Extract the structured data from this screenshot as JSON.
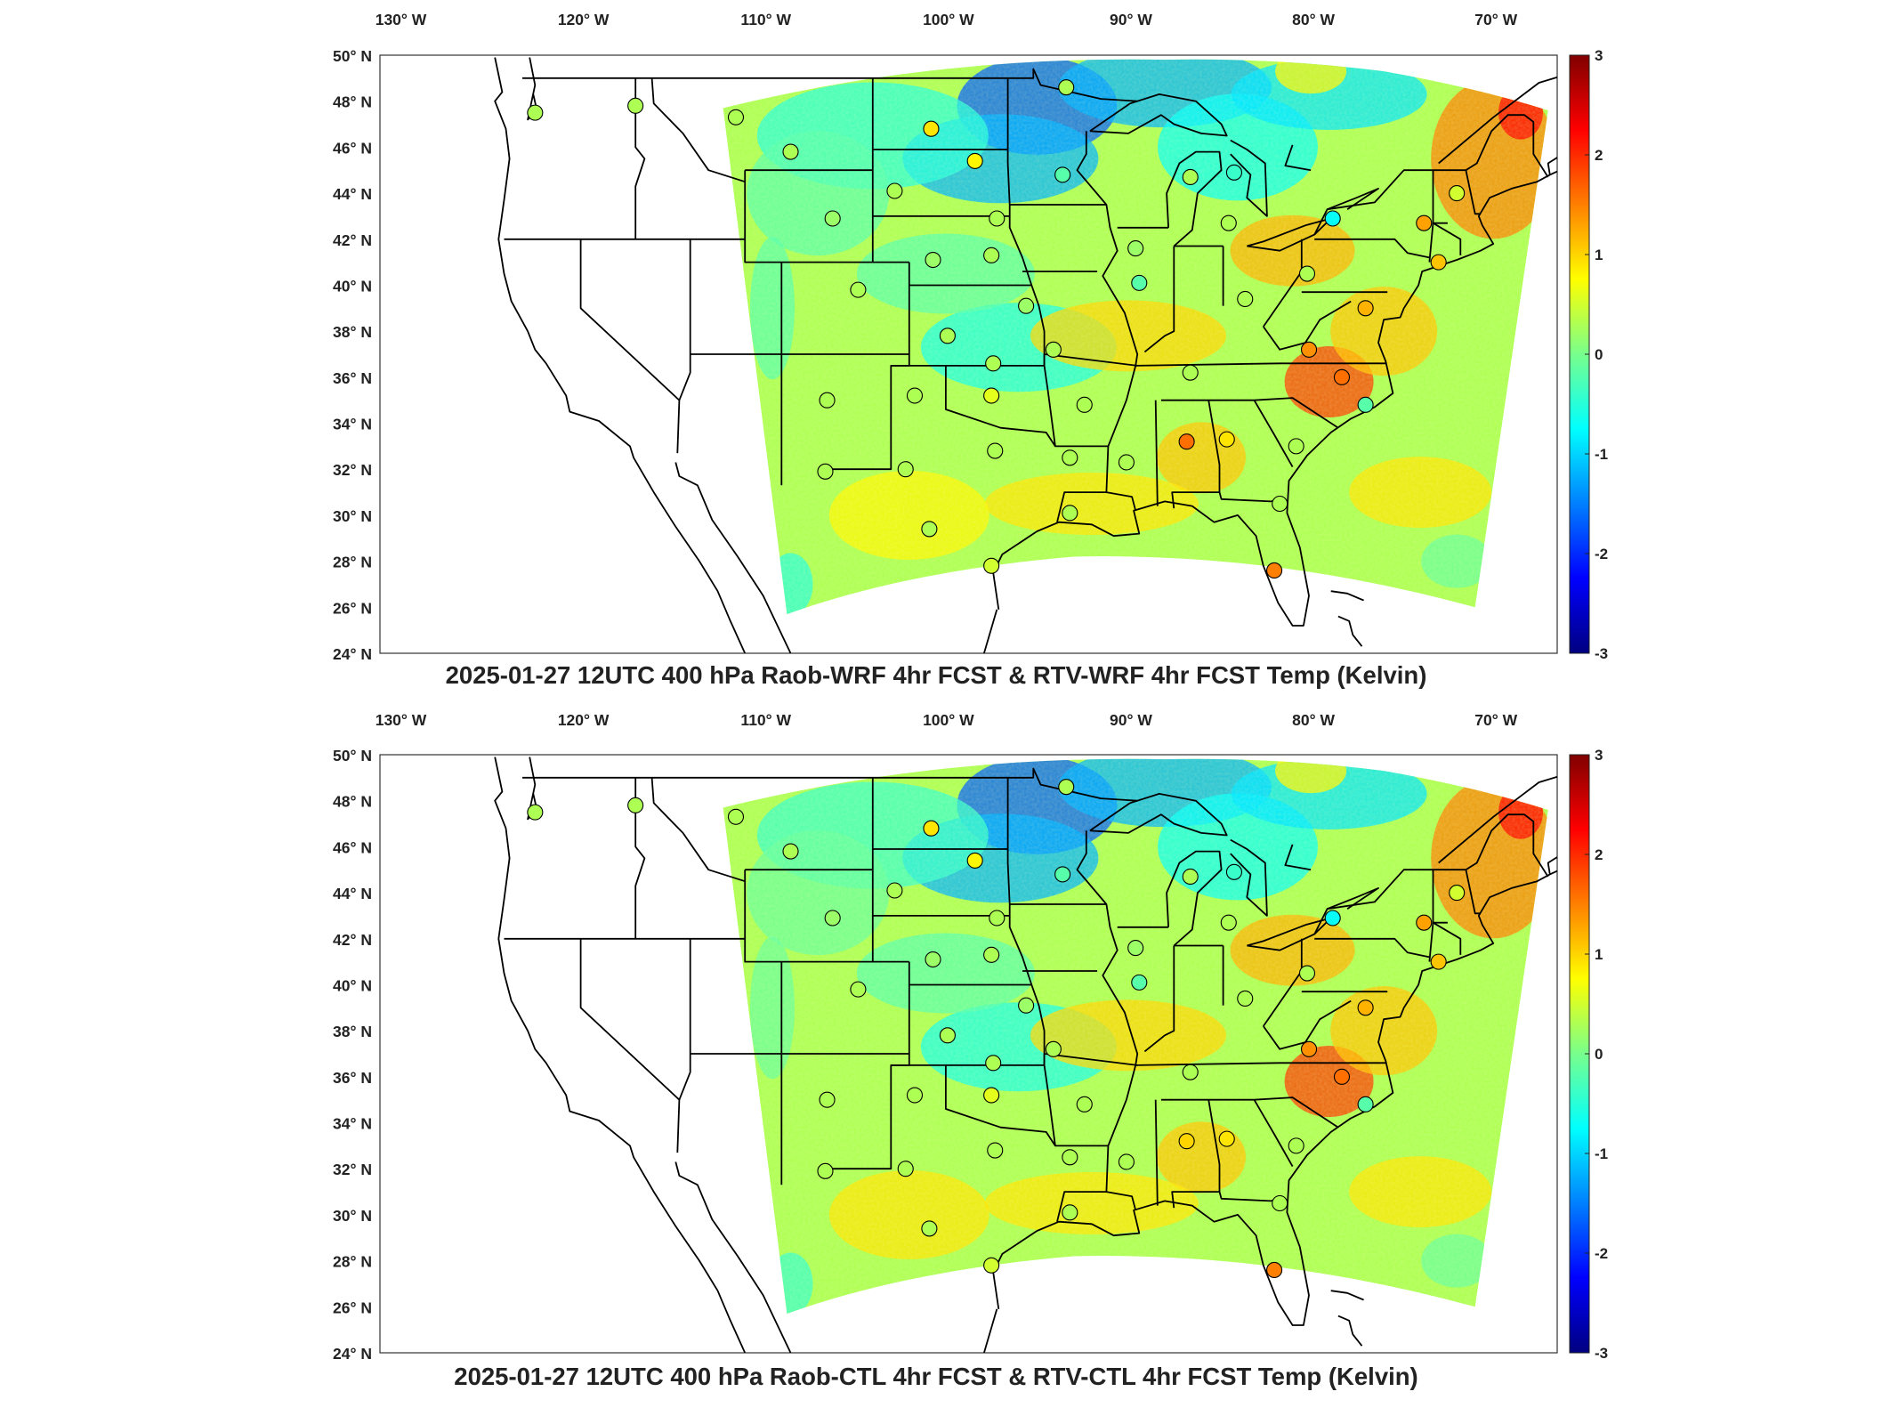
{
  "panels": [
    {
      "id": "top",
      "title": "2025-01-27 12UTC 400 hPa Raob-WRF 4hr FCST & RTV-WRF 4hr FCST Temp (Kelvin)",
      "variant": 0
    },
    {
      "id": "bottom",
      "title": "2025-01-27 12UTC 400 hPa Raob-CTL 4hr FCST & RTV-CTL 4hr FCST Temp (Kelvin)",
      "variant": 1
    }
  ],
  "lon_ticks": [
    {
      "value": -130,
      "label": "130° W"
    },
    {
      "value": -120,
      "label": "120° W"
    },
    {
      "value": -110,
      "label": "110° W"
    },
    {
      "value": -100,
      "label": "100° W"
    },
    {
      "value": -90,
      "label": "90° W"
    },
    {
      "value": -80,
      "label": "80° W"
    },
    {
      "value": -70,
      "label": "70° W"
    }
  ],
  "lat_ticks": [
    {
      "value": 50,
      "label": "50° N"
    },
    {
      "value": 48,
      "label": "48° N"
    },
    {
      "value": 46,
      "label": "46° N"
    },
    {
      "value": 44,
      "label": "44° N"
    },
    {
      "value": 42,
      "label": "42° N"
    },
    {
      "value": 40,
      "label": "40° N"
    },
    {
      "value": 38,
      "label": "38° N"
    },
    {
      "value": 36,
      "label": "36° N"
    },
    {
      "value": 34,
      "label": "34° N"
    },
    {
      "value": 32,
      "label": "32° N"
    },
    {
      "value": 30,
      "label": "30° N"
    },
    {
      "value": 28,
      "label": "28° N"
    },
    {
      "value": 26,
      "label": "26° N"
    },
    {
      "value": 24,
      "label": "24° N"
    }
  ],
  "colorbar": {
    "min": -3,
    "max": 3,
    "ticks": [
      "3",
      "2",
      "1",
      "0",
      "-1",
      "-2",
      "-3"
    ],
    "colors": [
      "#800000",
      "#ff0000",
      "#ffff00",
      "#80ff80",
      "#00ffff",
      "#0000ff",
      "#000080"
    ]
  },
  "map_extent": {
    "lon_min": -131,
    "lon_max": -66.5,
    "lat_min": 24,
    "lat_max": 50
  },
  "raob_stations": [
    {
      "lon": -122.5,
      "lat": 47.5,
      "v": 0.3
    },
    {
      "lon": -117.0,
      "lat": 47.8,
      "v": 0.3
    },
    {
      "lon": -111.5,
      "lat": 47.3,
      "v": 0.3
    },
    {
      "lon": -108.5,
      "lat": 45.8,
      "v": 0.3
    },
    {
      "lon": -106.2,
      "lat": 42.9,
      "v": 0.2
    },
    {
      "lon": -100.8,
      "lat": 46.8,
      "v": 0.9
    },
    {
      "lon": -98.4,
      "lat": 45.4,
      "v": 0.8
    },
    {
      "lon": -93.4,
      "lat": 48.6,
      "v": 0.3
    },
    {
      "lon": -93.6,
      "lat": 44.8,
      "v": -0.2
    },
    {
      "lon": -97.2,
      "lat": 42.9,
      "v": 0.3
    },
    {
      "lon": -100.7,
      "lat": 41.1,
      "v": 0.2
    },
    {
      "lon": -97.5,
      "lat": 41.3,
      "v": 0.3
    },
    {
      "lon": -104.8,
      "lat": 39.8,
      "v": 0.3
    },
    {
      "lon": -102.8,
      "lat": 44.1,
      "v": 0.3
    },
    {
      "lon": -95.6,
      "lat": 39.1,
      "v": 0.2
    },
    {
      "lon": -99.9,
      "lat": 37.8,
      "v": 0.3
    },
    {
      "lon": -97.4,
      "lat": 36.6,
      "v": 0.3
    },
    {
      "lon": -106.5,
      "lat": 35.0,
      "v": 0.3
    },
    {
      "lon": -101.7,
      "lat": 35.2,
      "v": 0.3
    },
    {
      "lon": -97.5,
      "lat": 35.2,
      "v": 0.6
    },
    {
      "lon": -94.1,
      "lat": 37.2,
      "v": 0.3
    },
    {
      "lon": -92.4,
      "lat": 34.8,
      "v": 0.3
    },
    {
      "lon": -106.6,
      "lat": 31.9,
      "v": 0.3
    },
    {
      "lon": -102.2,
      "lat": 32.0,
      "v": 0.3
    },
    {
      "lon": -97.3,
      "lat": 32.8,
      "v": 0.3
    },
    {
      "lon": -100.9,
      "lat": 29.4,
      "v": 0.3
    },
    {
      "lon": -97.5,
      "lat": 27.8,
      "v": 0.5
    },
    {
      "lon": -93.2,
      "lat": 32.5,
      "v": 0.3
    },
    {
      "lon": -93.2,
      "lat": 30.1,
      "v": 0.3
    },
    {
      "lon": -90.1,
      "lat": 32.3,
      "v": 0.3
    },
    {
      "lon": -86.8,
      "lat": 33.2,
      "v": 1.6
    },
    {
      "lon": -84.6,
      "lat": 33.3,
      "v": 0.9
    },
    {
      "lon": -86.6,
      "lat": 36.2,
      "v": 0.3
    },
    {
      "lon": -89.6,
      "lat": 41.6,
      "v": 0.2
    },
    {
      "lon": -89.4,
      "lat": 40.1,
      "v": -0.2
    },
    {
      "lon": -83.6,
      "lat": 39.4,
      "v": 0.3
    },
    {
      "lon": -86.6,
      "lat": 44.7,
      "v": 0.3
    },
    {
      "lon": -84.2,
      "lat": 44.9,
      "v": -0.4
    },
    {
      "lon": -84.5,
      "lat": 42.7,
      "v": 0.3
    },
    {
      "lon": -78.8,
      "lat": 42.9,
      "v": -0.7
    },
    {
      "lon": -73.8,
      "lat": 42.7,
      "v": 1.3
    },
    {
      "lon": -72.0,
      "lat": 44.0,
      "v": 0.5
    },
    {
      "lon": -80.2,
      "lat": 40.5,
      "v": 0.3
    },
    {
      "lon": -77.0,
      "lat": 39.0,
      "v": 1.2
    },
    {
      "lon": -80.1,
      "lat": 37.2,
      "v": 1.4
    },
    {
      "lon": -78.3,
      "lat": 36.0,
      "v": 1.6
    },
    {
      "lon": -77.0,
      "lat": 34.8,
      "v": -0.2
    },
    {
      "lon": -80.8,
      "lat": 33.0,
      "v": 0.3
    },
    {
      "lon": -81.7,
      "lat": 30.5,
      "v": 0.3
    },
    {
      "lon": -82.0,
      "lat": 27.6,
      "v": 1.5
    },
    {
      "lon": -73.0,
      "lat": 41.0,
      "v": 1.1
    }
  ]
}
